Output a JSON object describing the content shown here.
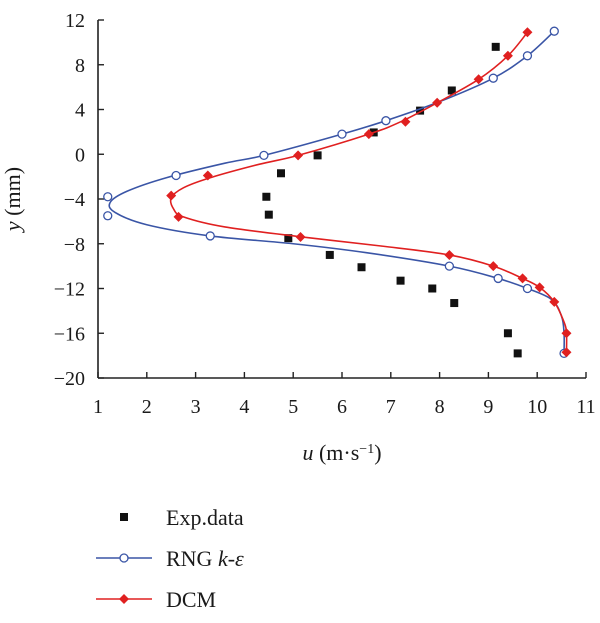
{
  "chart_data": {
    "type": "scatter",
    "xlabel": {
      "var": "u",
      "unit": " (m·s",
      "exp": "−1",
      "close": ")"
    },
    "ylabel": {
      "var": "y",
      "unit": " (mm)"
    },
    "xlim": [
      1,
      11
    ],
    "ylim": [
      -20,
      12
    ],
    "xticks": [
      1,
      2,
      3,
      4,
      5,
      6,
      7,
      8,
      9,
      10,
      11
    ],
    "yticks": [
      12,
      8,
      4,
      0,
      -4,
      -8,
      -12,
      -16,
      -20
    ],
    "grid": false,
    "legend_position": "bottom-left",
    "series": [
      {
        "name": "Exp.data",
        "kind": "markers",
        "marker": "square",
        "color": "#111111",
        "points": [
          [
            9.15,
            9.6
          ],
          [
            8.25,
            5.7
          ],
          [
            7.6,
            3.9
          ],
          [
            6.65,
            1.95
          ],
          [
            5.5,
            -0.1
          ],
          [
            4.75,
            -1.7
          ],
          [
            4.45,
            -3.8
          ],
          [
            4.5,
            -5.4
          ],
          [
            4.9,
            -7.5
          ],
          [
            5.75,
            -9.0
          ],
          [
            6.4,
            -10.1
          ],
          [
            7.2,
            -11.3
          ],
          [
            7.85,
            -12.0
          ],
          [
            8.3,
            -13.3
          ],
          [
            9.4,
            -16.0
          ],
          [
            9.6,
            -17.8
          ]
        ]
      },
      {
        "name": "RNG k-ε",
        "label_parts": [
          "RNG ",
          "k",
          "-",
          "ε"
        ],
        "kind": "line+markers",
        "marker": "circle-open",
        "color": "#3a55a6",
        "curve": [
          [
            10.35,
            11.0
          ],
          [
            9.8,
            8.8
          ],
          [
            9.1,
            6.8
          ],
          [
            8.0,
            4.7
          ],
          [
            6.9,
            3.0
          ],
          [
            6.0,
            1.8
          ],
          [
            4.4,
            -0.1
          ],
          [
            3.6,
            -0.8
          ],
          [
            2.4,
            -2.1
          ],
          [
            1.6,
            -3.3
          ],
          [
            1.25,
            -4.3
          ],
          [
            1.35,
            -5.2
          ],
          [
            2.0,
            -6.3
          ],
          [
            3.3,
            -7.3
          ],
          [
            5.0,
            -8.0
          ],
          [
            6.5,
            -8.8
          ],
          [
            8.2,
            -10.0
          ],
          [
            9.2,
            -11.1
          ],
          [
            9.8,
            -12.0
          ],
          [
            10.3,
            -13.0
          ],
          [
            10.5,
            -14.5
          ],
          [
            10.55,
            -16.0
          ],
          [
            10.55,
            -17.8
          ]
        ],
        "markers": [
          [
            10.35,
            11.0
          ],
          [
            9.8,
            8.8
          ],
          [
            9.1,
            6.8
          ],
          [
            6.9,
            3.0
          ],
          [
            6.0,
            1.8
          ],
          [
            4.4,
            -0.1
          ],
          [
            2.6,
            -1.9
          ],
          [
            1.2,
            -3.8
          ],
          [
            1.2,
            -5.5
          ],
          [
            3.3,
            -7.3
          ],
          [
            8.2,
            -10.0
          ],
          [
            9.2,
            -11.1
          ],
          [
            9.8,
            -12.0
          ],
          [
            10.55,
            -17.8
          ]
        ]
      },
      {
        "name": "DCM",
        "kind": "line+markers",
        "marker": "diamond",
        "color": "#e02020",
        "curve": [
          [
            9.8,
            10.9
          ],
          [
            9.4,
            8.8
          ],
          [
            8.8,
            6.7
          ],
          [
            7.95,
            4.6
          ],
          [
            7.2,
            2.9
          ],
          [
            6.55,
            1.8
          ],
          [
            5.1,
            -0.1
          ],
          [
            4.3,
            -0.9
          ],
          [
            3.3,
            -2.1
          ],
          [
            2.75,
            -3.0
          ],
          [
            2.5,
            -3.9
          ],
          [
            2.55,
            -4.9
          ],
          [
            2.75,
            -5.6
          ],
          [
            3.6,
            -6.5
          ],
          [
            5.2,
            -7.4
          ],
          [
            6.8,
            -8.2
          ],
          [
            8.2,
            -9.0
          ],
          [
            9.1,
            -10.0
          ],
          [
            9.7,
            -11.1
          ],
          [
            10.05,
            -11.9
          ],
          [
            10.35,
            -13.2
          ],
          [
            10.55,
            -15.0
          ],
          [
            10.6,
            -16.0
          ],
          [
            10.6,
            -17.7
          ]
        ],
        "markers": [
          [
            9.8,
            10.9
          ],
          [
            9.4,
            8.8
          ],
          [
            8.8,
            6.7
          ],
          [
            7.95,
            4.6
          ],
          [
            7.3,
            2.9
          ],
          [
            6.55,
            1.8
          ],
          [
            5.1,
            -0.1
          ],
          [
            3.25,
            -1.9
          ],
          [
            2.5,
            -3.7
          ],
          [
            2.65,
            -5.6
          ],
          [
            5.15,
            -7.4
          ],
          [
            8.2,
            -9.0
          ],
          [
            9.1,
            -10.0
          ],
          [
            9.7,
            -11.1
          ],
          [
            10.05,
            -11.9
          ],
          [
            10.35,
            -13.2
          ],
          [
            10.6,
            -16.0
          ],
          [
            10.6,
            -17.7
          ]
        ]
      }
    ]
  }
}
